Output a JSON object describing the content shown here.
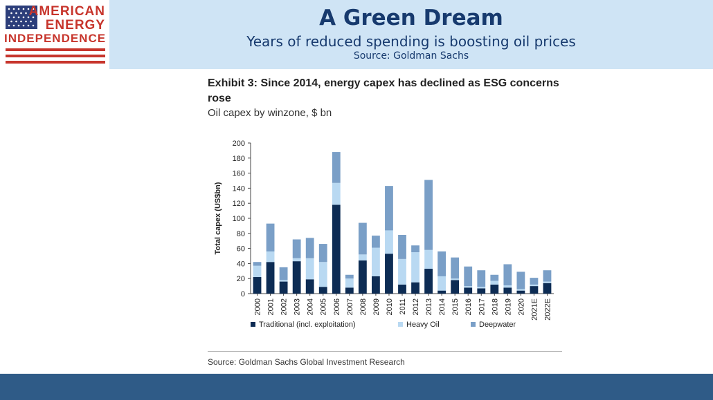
{
  "logo": {
    "line1": "AMERICAN",
    "line2": "ENERGY",
    "line3": "INDEPENDENCE"
  },
  "slide": {
    "title": "A Green Dream",
    "subtitle": "Years of reduced spending is boosting oil prices",
    "source": "Source: Goldman Sachs"
  },
  "exhibit": {
    "title": "Exhibit 3: Since 2014, energy capex has declined as ESG concerns rose",
    "subtitle": "Oil capex by winzone, $ bn",
    "source": "Source: Goldman Sachs Global Investment Research"
  },
  "colors": {
    "header_bg": "#cfe4f5",
    "title": "#173a6e",
    "logo_red": "#c7352c",
    "footer": "#2f5b87",
    "traditional": "#0d2c54",
    "heavy_oil": "#b9d9f2",
    "deepwater": "#7a9fc7"
  },
  "chart_data": {
    "type": "bar",
    "stacked": true,
    "categories": [
      "2000",
      "2001",
      "2002",
      "2003",
      "2004",
      "2005",
      "2006",
      "2007",
      "2008",
      "2009",
      "2010",
      "2011",
      "2012",
      "2013",
      "2014",
      "2015",
      "2016",
      "2017",
      "2018",
      "2019",
      "2020",
      "2021E",
      "2022E"
    ],
    "series": [
      {
        "name": "Traditional (incl. exploitation)",
        "color": "#0d2c54",
        "values": [
          22,
          42,
          16,
          43,
          19,
          9,
          118,
          8,
          44,
          23,
          53,
          12,
          15,
          33,
          4,
          18,
          8,
          7,
          12,
          8,
          4,
          10,
          14
        ]
      },
      {
        "name": "Heavy Oil",
        "color": "#b9d9f2",
        "values": [
          15,
          14,
          2,
          4,
          28,
          33,
          29,
          12,
          8,
          38,
          31,
          34,
          40,
          25,
          19,
          2,
          2,
          2,
          5,
          3,
          2,
          2,
          2
        ]
      },
      {
        "name": "Deepwater",
        "color": "#7a9fc7",
        "values": [
          5,
          37,
          17,
          25,
          27,
          24,
          41,
          5,
          42,
          16,
          59,
          32,
          9,
          93,
          33,
          28,
          26,
          22,
          8,
          28,
          23,
          9,
          15
        ]
      }
    ],
    "ylabel": "Total capex (US$bn)",
    "ylim": [
      0,
      200
    ],
    "yticks": [
      0,
      20,
      40,
      60,
      80,
      100,
      120,
      140,
      160,
      180,
      200
    ],
    "legend_position": "bottom",
    "grid": false
  }
}
